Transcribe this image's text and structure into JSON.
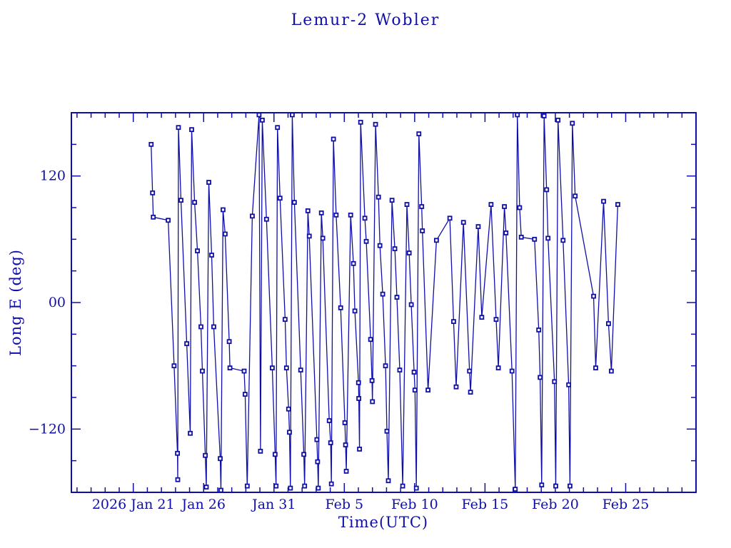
{
  "page": {
    "background": "#ffffff",
    "accent": "#0f0fa8"
  },
  "chart_data": {
    "type": "line",
    "title": "Lemur-2 Wobler",
    "xlabel": "Time(UTC)",
    "ylabel": "Long E (deg)",
    "marker": "open-square",
    "line_color": "#0f0fa8",
    "grid": false,
    "legend": "none",
    "xlim": [
      16.6,
      61.0
    ],
    "ylim": [
      -180,
      180
    ],
    "x_axis_note": "x in day-of-2026-January units; Feb n = 31+n",
    "x_major_ticks": [
      {
        "day": 21,
        "label": "2026 Jan 21"
      },
      {
        "day": 26,
        "label": "Jan 26"
      },
      {
        "day": 31,
        "label": "Jan 31"
      },
      {
        "day": 36,
        "label": "Feb 5"
      },
      {
        "day": 41,
        "label": "Feb 10"
      },
      {
        "day": 46,
        "label": "Feb 15"
      },
      {
        "day": 51,
        "label": "Feb 20"
      },
      {
        "day": 56,
        "label": "Feb 25"
      }
    ],
    "x_minor_step_days": 1,
    "y_major_ticks": [
      {
        "value": 120,
        "label": "120"
      },
      {
        "value": 0,
        "label": "00"
      },
      {
        "value": -120,
        "label": "−120"
      }
    ],
    "y_minor_step": 30,
    "points": [
      [
        22.27,
        150
      ],
      [
        22.37,
        104
      ],
      [
        22.42,
        81
      ],
      [
        23.48,
        78
      ],
      [
        23.9,
        -60
      ],
      [
        24.14,
        -143
      ],
      [
        24.16,
        -168
      ],
      [
        24.21,
        166
      ],
      [
        24.39,
        97
      ],
      [
        24.8,
        -39
      ],
      [
        25.05,
        -124
      ],
      [
        25.15,
        164
      ],
      [
        25.36,
        95
      ],
      [
        25.56,
        49
      ],
      [
        25.81,
        -23
      ],
      [
        25.91,
        -65
      ],
      [
        26.12,
        -145
      ],
      [
        26.19,
        -175
      ],
      [
        26.37,
        114
      ],
      [
        26.57,
        45
      ],
      [
        26.72,
        -23
      ],
      [
        27.18,
        -148
      ],
      [
        27.23,
        -178
      ],
      [
        27.38,
        88
      ],
      [
        27.53,
        65
      ],
      [
        27.82,
        -37
      ],
      [
        27.87,
        -62
      ],
      [
        28.88,
        -65
      ],
      [
        28.95,
        -87
      ],
      [
        29.1,
        -174
      ],
      [
        29.46,
        82
      ],
      [
        29.94,
        178
      ],
      [
        30.04,
        -141
      ],
      [
        30.17,
        173
      ],
      [
        30.47,
        79
      ],
      [
        30.88,
        -62
      ],
      [
        31.08,
        -144
      ],
      [
        31.15,
        -174
      ],
      [
        31.25,
        166
      ],
      [
        31.43,
        99
      ],
      [
        31.79,
        -16
      ],
      [
        31.89,
        -62
      ],
      [
        32.04,
        -101
      ],
      [
        32.1,
        -123
      ],
      [
        32.17,
        -176
      ],
      [
        32.3,
        178
      ],
      [
        32.45,
        95
      ],
      [
        32.9,
        -64
      ],
      [
        33.12,
        -144
      ],
      [
        33.18,
        -174
      ],
      [
        33.41,
        87
      ],
      [
        33.51,
        63
      ],
      [
        34.05,
        -130
      ],
      [
        34.1,
        -151
      ],
      [
        34.15,
        -176
      ],
      [
        34.37,
        85
      ],
      [
        34.47,
        61
      ],
      [
        34.93,
        -112
      ],
      [
        35.03,
        -133
      ],
      [
        35.08,
        -172
      ],
      [
        35.23,
        155
      ],
      [
        35.42,
        83
      ],
      [
        35.74,
        -5
      ],
      [
        36.04,
        -114
      ],
      [
        36.09,
        -135
      ],
      [
        36.14,
        -160
      ],
      [
        36.45,
        83
      ],
      [
        36.65,
        37
      ],
      [
        36.75,
        -8
      ],
      [
        37.01,
        -76
      ],
      [
        37.03,
        -91
      ],
      [
        37.08,
        -139
      ],
      [
        37.16,
        171
      ],
      [
        37.46,
        80
      ],
      [
        37.56,
        58
      ],
      [
        37.87,
        -35
      ],
      [
        37.97,
        -74
      ],
      [
        38.0,
        -94
      ],
      [
        38.22,
        169
      ],
      [
        38.43,
        100
      ],
      [
        38.53,
        54
      ],
      [
        38.73,
        8
      ],
      [
        38.93,
        -60
      ],
      [
        39.03,
        -122
      ],
      [
        39.13,
        -169
      ],
      [
        39.39,
        97
      ],
      [
        39.59,
        51
      ],
      [
        39.74,
        5
      ],
      [
        39.94,
        -64
      ],
      [
        40.15,
        -174
      ],
      [
        40.45,
        93
      ],
      [
        40.61,
        47
      ],
      [
        40.76,
        -2
      ],
      [
        40.96,
        -66
      ],
      [
        41.02,
        -83
      ],
      [
        41.12,
        -176
      ],
      [
        41.3,
        160
      ],
      [
        41.5,
        91
      ],
      [
        41.55,
        68
      ],
      [
        41.95,
        -83
      ],
      [
        42.55,
        59
      ],
      [
        43.5,
        80
      ],
      [
        43.77,
        -18
      ],
      [
        43.95,
        -80
      ],
      [
        44.47,
        76
      ],
      [
        44.9,
        -65
      ],
      [
        44.97,
        -85
      ],
      [
        45.52,
        72
      ],
      [
        45.77,
        -14
      ],
      [
        46.43,
        93
      ],
      [
        46.79,
        -16
      ],
      [
        46.95,
        -62
      ],
      [
        47.38,
        91
      ],
      [
        47.49,
        66
      ],
      [
        47.92,
        -65
      ],
      [
        48.15,
        -177
      ],
      [
        48.3,
        178
      ],
      [
        48.46,
        90
      ],
      [
        48.58,
        62
      ],
      [
        49.52,
        60
      ],
      [
        49.82,
        -26
      ],
      [
        49.92,
        -71
      ],
      [
        50.03,
        -173
      ],
      [
        50.2,
        177
      ],
      [
        50.38,
        107
      ],
      [
        50.48,
        61
      ],
      [
        50.94,
        -75
      ],
      [
        51.03,
        -174
      ],
      [
        51.19,
        173
      ],
      [
        51.55,
        59
      ],
      [
        51.95,
        -78
      ],
      [
        52.04,
        -174
      ],
      [
        52.21,
        170
      ],
      [
        52.41,
        101
      ],
      [
        53.72,
        6
      ],
      [
        53.87,
        -62
      ],
      [
        54.43,
        96
      ],
      [
        54.78,
        -20
      ],
      [
        54.98,
        -65
      ],
      [
        55.44,
        93
      ]
    ]
  }
}
